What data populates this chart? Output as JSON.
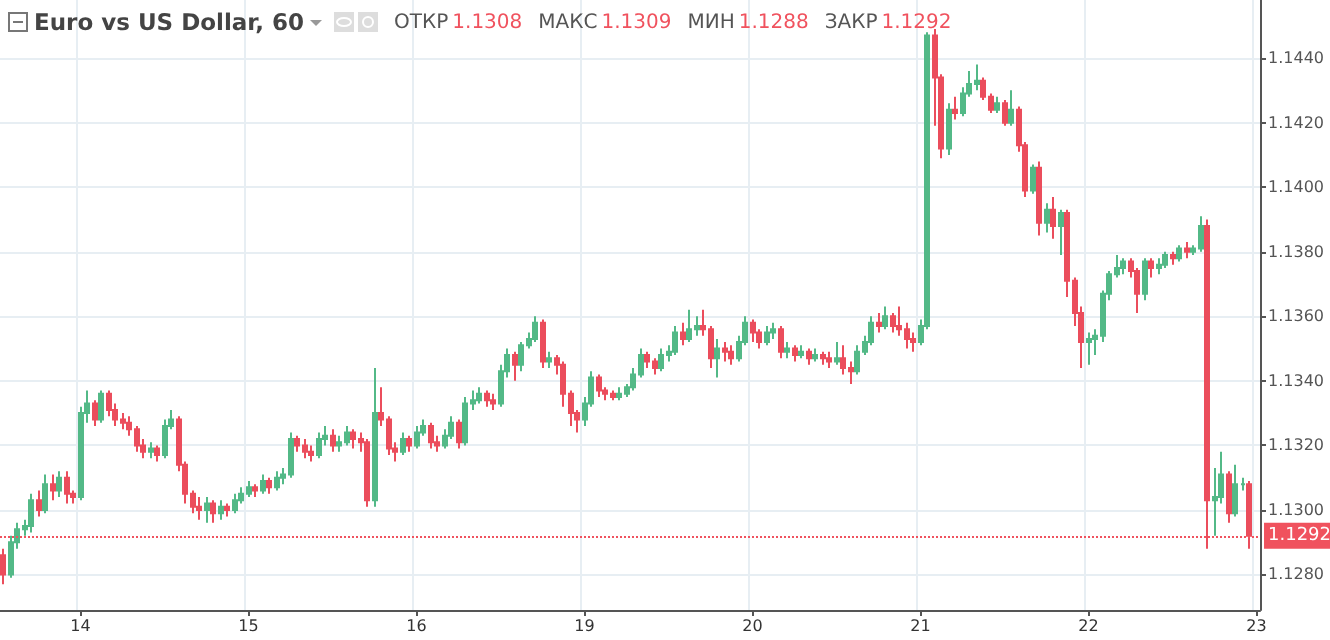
{
  "chart_data": {
    "type": "candlestick",
    "title": "Euro vs US Dollar, 60",
    "annotations": [
      "ОТКР 1.1308",
      "МАКС 1.1309",
      "МИН 1.1288",
      "ЗАКР 1.1292"
    ],
    "categories": [
      null,
      null,
      null,
      null,
      null,
      null,
      null,
      null,
      null,
      null,
      null,
      "14",
      null,
      null,
      null,
      null,
      null,
      null,
      null,
      null,
      null,
      null,
      null,
      null,
      null,
      null,
      null,
      null,
      null,
      null,
      null,
      null,
      null,
      null,
      null,
      "15",
      null,
      null,
      null,
      null,
      null,
      null,
      null,
      null,
      null,
      null,
      null,
      null,
      null,
      null,
      null,
      null,
      null,
      null,
      null,
      null,
      null,
      null,
      null,
      "16",
      null,
      null,
      null,
      null,
      null,
      null,
      null,
      null,
      null,
      null,
      null,
      null,
      null,
      null,
      null,
      null,
      null,
      null,
      null,
      null,
      null,
      null,
      null,
      "19",
      null,
      null,
      null,
      null,
      null,
      null,
      null,
      null,
      null,
      null,
      null,
      null,
      null,
      null,
      null,
      null,
      null,
      null,
      null,
      null,
      null,
      null,
      null,
      "20",
      null,
      null,
      null,
      null,
      null,
      null,
      null,
      null,
      null,
      null,
      null,
      null,
      null,
      null,
      null,
      null,
      null,
      null,
      null,
      null,
      null,
      null,
      null,
      "21",
      null,
      null,
      null,
      null,
      null,
      null,
      null,
      null,
      null,
      null,
      null,
      null,
      null,
      null,
      null,
      null,
      null,
      null,
      null,
      null,
      null,
      null,
      null,
      "22",
      null,
      null,
      null,
      null,
      null,
      null,
      null,
      null,
      null,
      null,
      null,
      null,
      null,
      null,
      null,
      null,
      null,
      null,
      null,
      null,
      null,
      null,
      null,
      "23"
    ],
    "ohlc": [
      [
        1.1286,
        1.1288,
        1.1277,
        1.128
      ],
      [
        1.128,
        1.1292,
        1.1279,
        1.129
      ],
      [
        1.129,
        1.1296,
        1.1288,
        1.1294
      ],
      [
        1.1294,
        1.1297,
        1.1292,
        1.1295
      ],
      [
        1.1295,
        1.1305,
        1.1293,
        1.1303
      ],
      [
        1.1303,
        1.1306,
        1.1298,
        1.13
      ],
      [
        1.13,
        1.1311,
        1.1299,
        1.1308
      ],
      [
        1.1308,
        1.1311,
        1.1303,
        1.1306
      ],
      [
        1.1306,
        1.1312,
        1.1304,
        1.131
      ],
      [
        1.131,
        1.1312,
        1.1302,
        1.1305
      ],
      [
        1.1305,
        1.1306,
        1.1302,
        1.1304
      ],
      [
        1.1304,
        1.1332,
        1.1303,
        1.133
      ],
      [
        1.133,
        1.1337,
        1.1327,
        1.1333
      ],
      [
        1.1333,
        1.1334,
        1.1326,
        1.1328
      ],
      [
        1.1328,
        1.1337,
        1.1327,
        1.1336
      ],
      [
        1.1336,
        1.1337,
        1.1329,
        1.1331
      ],
      [
        1.1331,
        1.1333,
        1.1326,
        1.1328
      ],
      [
        1.1328,
        1.133,
        1.1325,
        1.1327
      ],
      [
        1.1327,
        1.1329,
        1.1323,
        1.1325
      ],
      [
        1.1325,
        1.1326,
        1.1318,
        1.132
      ],
      [
        1.132,
        1.1322,
        1.1316,
        1.1318
      ],
      [
        1.1318,
        1.1321,
        1.1316,
        1.1319
      ],
      [
        1.1319,
        1.132,
        1.1315,
        1.1317
      ],
      [
        1.1317,
        1.1328,
        1.1316,
        1.1326
      ],
      [
        1.1326,
        1.1331,
        1.1325,
        1.1328
      ],
      [
        1.1328,
        1.1329,
        1.1312,
        1.1314
      ],
      [
        1.1314,
        1.1315,
        1.1302,
        1.1305
      ],
      [
        1.1305,
        1.1306,
        1.1299,
        1.1301
      ],
      [
        1.1301,
        1.1304,
        1.1297,
        1.13
      ],
      [
        1.13,
        1.1304,
        1.1296,
        1.1302
      ],
      [
        1.1302,
        1.1303,
        1.1296,
        1.1299
      ],
      [
        1.1299,
        1.1303,
        1.1297,
        1.1301
      ],
      [
        1.1301,
        1.1302,
        1.1298,
        1.13
      ],
      [
        1.13,
        1.1305,
        1.1299,
        1.1303
      ],
      [
        1.1303,
        1.1307,
        1.1302,
        1.1305
      ],
      [
        1.1305,
        1.1309,
        1.1304,
        1.1307
      ],
      [
        1.1307,
        1.1308,
        1.1304,
        1.1306
      ],
      [
        1.1306,
        1.1311,
        1.1305,
        1.1309
      ],
      [
        1.1309,
        1.131,
        1.1305,
        1.1307
      ],
      [
        1.1307,
        1.1312,
        1.1306,
        1.131
      ],
      [
        1.131,
        1.1313,
        1.1308,
        1.1311
      ],
      [
        1.1311,
        1.1324,
        1.131,
        1.1322
      ],
      [
        1.1322,
        1.1323,
        1.1318,
        1.132
      ],
      [
        1.132,
        1.1322,
        1.1316,
        1.1318
      ],
      [
        1.1318,
        1.132,
        1.1315,
        1.1317
      ],
      [
        1.1317,
        1.1324,
        1.1316,
        1.1322
      ],
      [
        1.1322,
        1.1326,
        1.132,
        1.1323
      ],
      [
        1.1323,
        1.1325,
        1.1318,
        1.132
      ],
      [
        1.132,
        1.1323,
        1.1318,
        1.1321
      ],
      [
        1.1321,
        1.1326,
        1.132,
        1.1324
      ],
      [
        1.1324,
        1.1325,
        1.1319,
        1.1322
      ],
      [
        1.1322,
        1.1324,
        1.1318,
        1.1321
      ],
      [
        1.1321,
        1.1322,
        1.1301,
        1.1303
      ],
      [
        1.1303,
        1.1344,
        1.1301,
        1.133
      ],
      [
        1.133,
        1.1338,
        1.1326,
        1.1328
      ],
      [
        1.1328,
        1.1329,
        1.1317,
        1.1319
      ],
      [
        1.1319,
        1.1321,
        1.1315,
        1.1318
      ],
      [
        1.1318,
        1.1324,
        1.1317,
        1.1322
      ],
      [
        1.1322,
        1.1323,
        1.1318,
        1.132
      ],
      [
        1.132,
        1.1326,
        1.1319,
        1.1324
      ],
      [
        1.1324,
        1.1328,
        1.1323,
        1.1326
      ],
      [
        1.1326,
        1.1327,
        1.1319,
        1.1321
      ],
      [
        1.1321,
        1.1323,
        1.1318,
        1.132
      ],
      [
        1.132,
        1.1325,
        1.1319,
        1.1323
      ],
      [
        1.1323,
        1.1329,
        1.1322,
        1.1327
      ],
      [
        1.1327,
        1.1328,
        1.1319,
        1.1321
      ],
      [
        1.1321,
        1.1335,
        1.132,
        1.1333
      ],
      [
        1.1333,
        1.1337,
        1.1331,
        1.1334
      ],
      [
        1.1334,
        1.1338,
        1.1333,
        1.1336
      ],
      [
        1.1336,
        1.1337,
        1.1332,
        1.1334
      ],
      [
        1.1334,
        1.1336,
        1.1331,
        1.1333
      ],
      [
        1.1333,
        1.1345,
        1.1332,
        1.1343
      ],
      [
        1.1343,
        1.135,
        1.1341,
        1.1348
      ],
      [
        1.1348,
        1.1349,
        1.134,
        1.1345
      ],
      [
        1.1345,
        1.1352,
        1.1343,
        1.1351
      ],
      [
        1.1351,
        1.1355,
        1.135,
        1.1353
      ],
      [
        1.1353,
        1.136,
        1.1352,
        1.1358
      ],
      [
        1.1358,
        1.1359,
        1.1344,
        1.1346
      ],
      [
        1.1346,
        1.1349,
        1.1344,
        1.1347
      ],
      [
        1.1347,
        1.1348,
        1.1342,
        1.1345
      ],
      [
        1.1345,
        1.1346,
        1.1332,
        1.1336
      ],
      [
        1.1336,
        1.1337,
        1.1326,
        1.133
      ],
      [
        1.133,
        1.1331,
        1.1324,
        1.1328
      ],
      [
        1.1328,
        1.1335,
        1.1326,
        1.1333
      ],
      [
        1.1333,
        1.1343,
        1.1332,
        1.1341
      ],
      [
        1.1341,
        1.1342,
        1.1335,
        1.1337
      ],
      [
        1.1337,
        1.1338,
        1.1334,
        1.1336
      ],
      [
        1.1336,
        1.1337,
        1.1334,
        1.1335
      ],
      [
        1.1335,
        1.1338,
        1.1334,
        1.1336
      ],
      [
        1.1336,
        1.1339,
        1.1335,
        1.1338
      ],
      [
        1.1338,
        1.1344,
        1.1337,
        1.1342
      ],
      [
        1.1342,
        1.135,
        1.1341,
        1.1348
      ],
      [
        1.1348,
        1.1349,
        1.1344,
        1.1346
      ],
      [
        1.1346,
        1.1347,
        1.1342,
        1.1344
      ],
      [
        1.1344,
        1.135,
        1.1343,
        1.1348
      ],
      [
        1.1348,
        1.1351,
        1.1346,
        1.1349
      ],
      [
        1.1349,
        1.1357,
        1.1348,
        1.1355
      ],
      [
        1.1355,
        1.1358,
        1.1351,
        1.1353
      ],
      [
        1.1353,
        1.1362,
        1.1352,
        1.1356
      ],
      [
        1.1356,
        1.136,
        1.1354,
        1.1357
      ],
      [
        1.1357,
        1.1362,
        1.1354,
        1.1356
      ],
      [
        1.1356,
        1.1357,
        1.1344,
        1.1347
      ],
      [
        1.1347,
        1.1353,
        1.1341,
        1.135
      ],
      [
        1.135,
        1.1352,
        1.1346,
        1.1349
      ],
      [
        1.1349,
        1.1351,
        1.1345,
        1.1347
      ],
      [
        1.1347,
        1.1354,
        1.1346,
        1.1352
      ],
      [
        1.1352,
        1.136,
        1.1351,
        1.1358
      ],
      [
        1.1358,
        1.1359,
        1.1352,
        1.1355
      ],
      [
        1.1355,
        1.1356,
        1.135,
        1.1352
      ],
      [
        1.1352,
        1.1357,
        1.1351,
        1.1355
      ],
      [
        1.1355,
        1.1358,
        1.1353,
        1.1356
      ],
      [
        1.1356,
        1.1357,
        1.1347,
        1.1349
      ],
      [
        1.1349,
        1.1352,
        1.1347,
        1.135
      ],
      [
        1.135,
        1.1351,
        1.1346,
        1.1348
      ],
      [
        1.1348,
        1.1351,
        1.1347,
        1.1349
      ],
      [
        1.1349,
        1.135,
        1.1345,
        1.1347
      ],
      [
        1.1347,
        1.135,
        1.1346,
        1.1348
      ],
      [
        1.1348,
        1.1349,
        1.1345,
        1.1347
      ],
      [
        1.1347,
        1.1349,
        1.1344,
        1.1346
      ],
      [
        1.1346,
        1.1352,
        1.1345,
        1.1347
      ],
      [
        1.1347,
        1.1351,
        1.1342,
        1.1344
      ],
      [
        1.1344,
        1.1346,
        1.1339,
        1.1343
      ],
      [
        1.1343,
        1.1351,
        1.1342,
        1.1349
      ],
      [
        1.1349,
        1.1354,
        1.1348,
        1.1352
      ],
      [
        1.1352,
        1.136,
        1.1351,
        1.1358
      ],
      [
        1.1358,
        1.1361,
        1.1355,
        1.1357
      ],
      [
        1.1357,
        1.1363,
        1.1356,
        1.136
      ],
      [
        1.136,
        1.1361,
        1.1355,
        1.1357
      ],
      [
        1.1357,
        1.1363,
        1.1354,
        1.1356
      ],
      [
        1.1356,
        1.1358,
        1.135,
        1.1353
      ],
      [
        1.1353,
        1.1355,
        1.1349,
        1.1352
      ],
      [
        1.1352,
        1.1359,
        1.1351,
        1.1357
      ],
      [
        1.1357,
        1.1448,
        1.1356,
        1.1447
      ],
      [
        1.1447,
        1.1449,
        1.1419,
        1.1434
      ],
      [
        1.1434,
        1.1435,
        1.1409,
        1.1412
      ],
      [
        1.1412,
        1.1426,
        1.141,
        1.1424
      ],
      [
        1.1424,
        1.1428,
        1.1421,
        1.1423
      ],
      [
        1.1423,
        1.1431,
        1.1422,
        1.1429
      ],
      [
        1.1429,
        1.1436,
        1.1428,
        1.1432
      ],
      [
        1.1432,
        1.1438,
        1.143,
        1.1433
      ],
      [
        1.1433,
        1.1434,
        1.1427,
        1.1428
      ],
      [
        1.1428,
        1.1429,
        1.1423,
        1.1424
      ],
      [
        1.1424,
        1.1428,
        1.1423,
        1.1426
      ],
      [
        1.1426,
        1.1427,
        1.1419,
        1.142
      ],
      [
        1.142,
        1.143,
        1.1419,
        1.1424
      ],
      [
        1.1424,
        1.1425,
        1.1411,
        1.1413
      ],
      [
        1.1413,
        1.1414,
        1.1397,
        1.1399
      ],
      [
        1.1399,
        1.1407,
        1.1398,
        1.1406
      ],
      [
        1.1406,
        1.1408,
        1.1385,
        1.1389
      ],
      [
        1.1389,
        1.1395,
        1.1386,
        1.1393
      ],
      [
        1.1393,
        1.1397,
        1.1384,
        1.1388
      ],
      [
        1.1388,
        1.1393,
        1.1379,
        1.1392
      ],
      [
        1.1392,
        1.1393,
        1.1366,
        1.1371
      ],
      [
        1.1371,
        1.1372,
        1.1357,
        1.1361
      ],
      [
        1.1361,
        1.1363,
        1.1344,
        1.1352
      ],
      [
        1.1352,
        1.1355,
        1.1345,
        1.1353
      ],
      [
        1.1353,
        1.1356,
        1.1348,
        1.1354
      ],
      [
        1.1354,
        1.1368,
        1.1352,
        1.1367
      ],
      [
        1.1367,
        1.1374,
        1.1365,
        1.1373
      ],
      [
        1.1373,
        1.1379,
        1.1372,
        1.1375
      ],
      [
        1.1375,
        1.1378,
        1.1373,
        1.1377
      ],
      [
        1.1377,
        1.1378,
        1.1372,
        1.1374
      ],
      [
        1.1374,
        1.1375,
        1.1361,
        1.1367
      ],
      [
        1.1367,
        1.1378,
        1.1365,
        1.1377
      ],
      [
        1.1377,
        1.1378,
        1.1372,
        1.1375
      ],
      [
        1.1375,
        1.1378,
        1.1373,
        1.1376
      ],
      [
        1.1376,
        1.138,
        1.1375,
        1.1379
      ],
      [
        1.1379,
        1.138,
        1.1376,
        1.1378
      ],
      [
        1.1378,
        1.1382,
        1.1377,
        1.1381
      ],
      [
        1.1381,
        1.1383,
        1.1378,
        1.138
      ],
      [
        1.138,
        1.1382,
        1.1379,
        1.1381
      ],
      [
        1.1381,
        1.1391,
        1.138,
        1.1388
      ],
      [
        1.1388,
        1.139,
        1.1288,
        1.1303
      ],
      [
        1.1303,
        1.1313,
        1.1292,
        1.1304
      ],
      [
        1.1304,
        1.1318,
        1.1302,
        1.1311
      ],
      [
        1.1311,
        1.1312,
        1.1296,
        1.1299
      ],
      [
        1.1299,
        1.1314,
        1.1298,
        1.1308
      ],
      [
        1.1308,
        1.131,
        1.1306,
        1.1308
      ],
      [
        1.1308,
        1.1309,
        1.1288,
        1.1292
      ],
      null
    ],
    "ylim": [
      1.1269,
      1.1458
    ],
    "yticks": [
      {
        "value": 1.128,
        "label": "1.1280"
      },
      {
        "value": 1.13,
        "label": "1.1300"
      },
      {
        "value": 1.132,
        "label": "1.1320"
      },
      {
        "value": 1.134,
        "label": "1.1340"
      },
      {
        "value": 1.136,
        "label": "1.1360"
      },
      {
        "value": 1.138,
        "label": "1.1380"
      },
      {
        "value": 1.14,
        "label": "1.1400"
      },
      {
        "value": 1.142,
        "label": "1.1420"
      },
      {
        "value": 1.144,
        "label": "1.1440"
      }
    ],
    "ref_lines": [
      {
        "axis": "y",
        "value": 1.1292,
        "label": "1.1292",
        "color": "#f0525e",
        "line_style": "dotted"
      }
    ],
    "grid": true
  }
}
